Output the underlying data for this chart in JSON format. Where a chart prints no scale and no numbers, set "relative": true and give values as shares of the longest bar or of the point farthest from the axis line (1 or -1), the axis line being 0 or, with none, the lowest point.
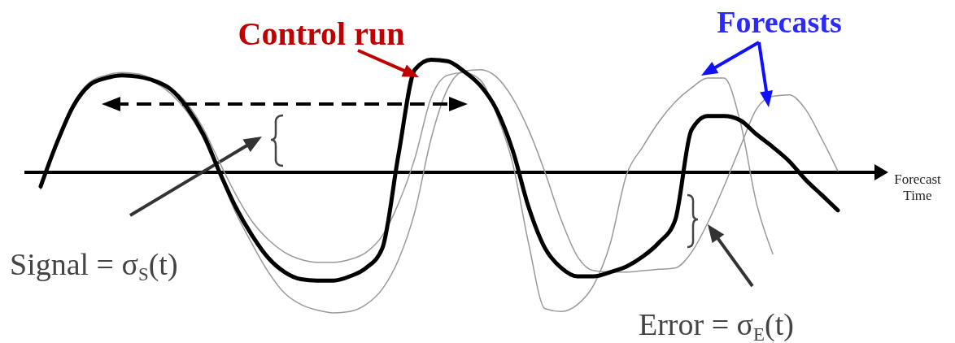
{
  "chart_data": {
    "type": "line",
    "relative": true,
    "xlabel": "Forecast Time",
    "annotations": [
      "Control run",
      "Forecasts",
      "Signal = σ$_{S}$(t)",
      "Error = σ$_{E}$(t)"
    ],
    "categories": [
      null,
      null,
      null,
      null,
      null,
      null,
      null,
      null,
      null,
      null,
      null,
      null,
      null,
      null,
      null,
      null,
      null,
      null,
      null,
      null,
      null,
      null,
      null,
      null,
      null,
      null,
      null,
      null,
      null,
      null,
      null,
      null,
      null,
      null,
      null,
      null,
      null,
      null,
      null,
      null,
      null,
      null,
      null,
      null,
      null,
      null,
      null,
      null,
      null,
      null,
      null
    ],
    "series": [
      {
        "color": "#999999",
        "values": [
          -0.09,
          0.23,
          0.49,
          0.64,
          0.69,
          0.71,
          0.7,
          0.66,
          0.6,
          0.49,
          0.31,
          0.07,
          -0.16,
          -0.35,
          -0.48,
          -0.57,
          -0.62,
          -0.64,
          -0.64,
          -0.62,
          -0.57,
          -0.45,
          -0.22,
          0.1,
          0.53,
          0.69,
          0.71,
          0.66,
          0.42,
          0.07,
          -0.51,
          -0.97,
          -0.99,
          -0.94,
          -0.8,
          -0.51,
          -0.02,
          0.18,
          0.36,
          0.5,
          0.6,
          0.67,
          0.67,
          0.36,
          -0.22,
          -0.58,
          null,
          null,
          null,
          null,
          null
        ]
      },
      {
        "color": "#999999",
        "values": [
          -0.12,
          0.2,
          0.46,
          0.62,
          0.68,
          0.69,
          0.68,
          0.64,
          0.56,
          0.43,
          0.24,
          -0.02,
          -0.29,
          -0.51,
          -0.71,
          -0.86,
          -0.94,
          -0.98,
          -1,
          -0.99,
          -0.94,
          -0.83,
          -0.62,
          -0.28,
          0.24,
          0.59,
          0.72,
          0.73,
          0.68,
          0.53,
          0.3,
          0,
          -0.34,
          -0.6,
          -0.7,
          -0.71,
          -0.71,
          -0.7,
          -0.69,
          -0.68,
          -0.57,
          -0.36,
          -0.1,
          0.18,
          0.45,
          0.54,
          0.55,
          0.45,
          0.24,
          0.01,
          null
        ]
      },
      {
        "color": "#000000",
        "values": [
          -0.1,
          0.21,
          0.47,
          0.62,
          0.67,
          0.69,
          0.68,
          0.65,
          0.59,
          0.46,
          0.27,
          0.0,
          -0.25,
          -0.45,
          -0.61,
          -0.71,
          -0.76,
          -0.77,
          -0.77,
          -0.74,
          -0.68,
          -0.54,
          0.13,
          0.73,
          0.8,
          0.79,
          0.72,
          0.62,
          0.45,
          0.16,
          -0.25,
          -0.54,
          -0.68,
          -0.74,
          -0.74,
          -0.71,
          -0.67,
          -0.6,
          -0.5,
          -0.34,
          0.3,
          0.4,
          0.4,
          0.37,
          0.27,
          0.18,
          0.08,
          -0.05,
          -0.16,
          -0.27,
          null
        ]
      }
    ]
  }
}
